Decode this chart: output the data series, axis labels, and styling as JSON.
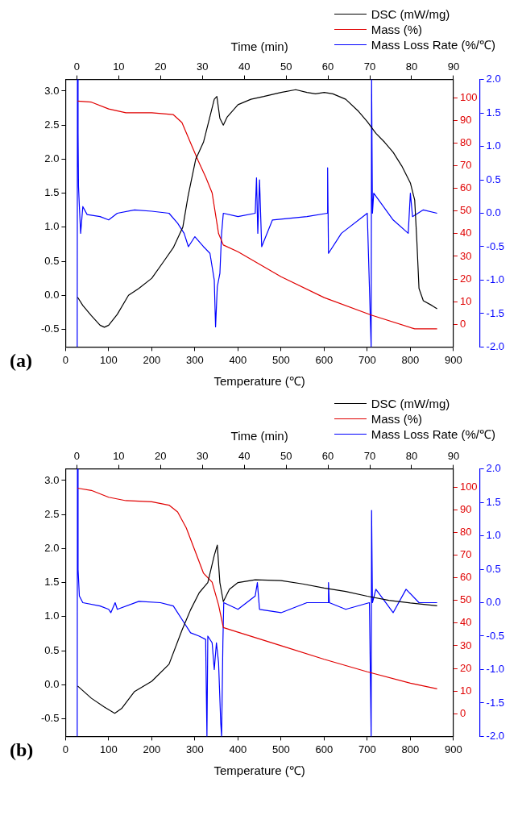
{
  "chart_data": [
    {
      "type": "line",
      "xlabel": "Temperature (℃)",
      "x2label": "Time (min)",
      "annotations": [
        "(a)"
      ],
      "legend": "top right",
      "grid": false,
      "marker": "none",
      "xlim": [
        0,
        900
      ],
      "xticks": [
        0,
        100,
        200,
        300,
        400,
        500,
        600,
        700,
        800,
        900
      ],
      "x2lim": [
        -2.7,
        90
      ],
      "x2ticks": [
        0,
        10,
        20,
        30,
        40,
        50,
        60,
        70,
        80,
        90
      ],
      "ylim": [
        -0.76,
        3.17
      ],
      "yticks": [
        {
          "value": -0.5,
          "label": "-0.5"
        },
        {
          "value": 0,
          "label": "0.0"
        },
        {
          "value": 0.5,
          "label": "0.5"
        },
        {
          "value": 1,
          "label": "1.0"
        },
        {
          "value": 1.5,
          "label": "1.5"
        },
        {
          "value": 2,
          "label": "2.0"
        },
        {
          "value": 2.5,
          "label": "2.5"
        },
        {
          "value": 3,
          "label": "3.0"
        }
      ],
      "y2lim": [
        -10,
        108
      ],
      "y2ticks": [
        0,
        10,
        20,
        30,
        40,
        50,
        60,
        70,
        80,
        90,
        100
      ],
      "y3lim": [
        -2,
        2
      ],
      "y3ticks": [
        {
          "value": -2,
          "label": "-2.0"
        },
        {
          "value": -1.5,
          "label": "-1.5"
        },
        {
          "value": -1,
          "label": "-1.0"
        },
        {
          "value": -0.5,
          "label": "-0.5"
        },
        {
          "value": 0,
          "label": "0.0"
        },
        {
          "value": 0.5,
          "label": "0.5"
        },
        {
          "value": 1,
          "label": "1.0"
        },
        {
          "value": 1.5,
          "label": "1.5"
        },
        {
          "value": 2,
          "label": "2.0"
        }
      ],
      "series": [
        {
          "name": "DSC (mW/mg)",
          "color": "#000000",
          "x": [
            28,
            40,
            60,
            80,
            90,
            100,
            120,
            146,
            170,
            200,
            228,
            250,
            272,
            284,
            302,
            320,
            332,
            345,
            351,
            358,
            366,
            375,
            400,
            430,
            460,
            500,
            534,
            560,
            580,
            600,
            620,
            650,
            680,
            700,
            720,
            740,
            760,
            780,
            800,
            810,
            815,
            820,
            830,
            850,
            862
          ],
          "values": [
            -0.03,
            -0.15,
            -0.3,
            -0.44,
            -0.47,
            -0.44,
            -0.28,
            0.0,
            0.1,
            0.25,
            0.5,
            0.7,
            1.0,
            1.45,
            2.0,
            2.25,
            2.55,
            2.88,
            2.92,
            2.6,
            2.5,
            2.62,
            2.8,
            2.88,
            2.92,
            2.98,
            3.02,
            2.98,
            2.96,
            2.98,
            2.96,
            2.88,
            2.7,
            2.55,
            2.38,
            2.25,
            2.1,
            1.9,
            1.65,
            1.4,
            0.8,
            0.1,
            -0.08,
            -0.15,
            -0.2
          ]
        },
        {
          "name": "Mass (%)",
          "color": "#e00000",
          "axis": "y2",
          "x": [
            28,
            60,
            100,
            140,
            200,
            250,
            270,
            290,
            308,
            325,
            340,
            355,
            366,
            400,
            500,
            600,
            709,
            810,
            862
          ],
          "values": [
            98.5,
            98,
            95,
            93.3,
            93.3,
            92.5,
            89,
            80,
            72,
            65,
            58,
            40,
            35,
            32,
            21,
            11.8,
            4.1,
            -2,
            -2
          ]
        },
        {
          "name": "Mass Loss Rate (%/℃)",
          "color": "#0000ff",
          "axis": "y3",
          "x": [
            27,
            27.5,
            29,
            30,
            32,
            35,
            40,
            50,
            80,
            100,
            120,
            160,
            200,
            240,
            260,
            275,
            285,
            300,
            320,
            335,
            345,
            348,
            352,
            358,
            362,
            366,
            400,
            440,
            443,
            446,
            450,
            455,
            480,
            560,
            607,
            608,
            610,
            640,
            700,
            709,
            710,
            712,
            715,
            760,
            795,
            800,
            805,
            830,
            862
          ],
          "values": [
            -2,
            2,
            1.2,
            0.4,
            0.1,
            -0.3,
            0.1,
            -0.02,
            -0.05,
            -0.1,
            0,
            0.05,
            0.03,
            0,
            -0.15,
            -0.3,
            -0.5,
            -0.35,
            -0.5,
            -0.6,
            -1,
            -1.7,
            -1.1,
            -0.9,
            -0.3,
            0,
            -0.05,
            0,
            0.53,
            -0.3,
            0.5,
            -0.5,
            -0.1,
            -0.05,
            0,
            0.68,
            -0.6,
            -0.3,
            0,
            -2,
            2,
            0,
            0.3,
            -0.1,
            -0.3,
            0.3,
            -0.05,
            0.05,
            0
          ]
        }
      ]
    },
    {
      "type": "line",
      "xlabel": "Temperature (℃)",
      "x2label": "Time (min)",
      "annotations": [
        "(b)"
      ],
      "legend": "top right",
      "grid": false,
      "marker": "none",
      "xlim": [
        0,
        900
      ],
      "xticks": [
        0,
        100,
        200,
        300,
        400,
        500,
        600,
        700,
        800,
        900
      ],
      "x2lim": [
        -2.7,
        90
      ],
      "x2ticks": [
        0,
        10,
        20,
        30,
        40,
        50,
        60,
        70,
        80,
        90
      ],
      "ylim": [
        -0.76,
        3.17
      ],
      "yticks": [
        {
          "value": -0.5,
          "label": "-0.5"
        },
        {
          "value": 0,
          "label": "0.0"
        },
        {
          "value": 0.5,
          "label": "0.5"
        },
        {
          "value": 1,
          "label": "1.0"
        },
        {
          "value": 1.5,
          "label": "1.5"
        },
        {
          "value": 2,
          "label": "2.0"
        },
        {
          "value": 2.5,
          "label": "2.5"
        },
        {
          "value": 3,
          "label": "3.0"
        }
      ],
      "y2lim": [
        -10,
        108
      ],
      "y2ticks": [
        0,
        10,
        20,
        30,
        40,
        50,
        60,
        70,
        80,
        90,
        100
      ],
      "y3lim": [
        -2,
        2
      ],
      "y3ticks": [
        {
          "value": -2,
          "label": "-2.0"
        },
        {
          "value": -1.5,
          "label": "-1.5"
        },
        {
          "value": -1,
          "label": "-1.0"
        },
        {
          "value": -0.5,
          "label": "-0.5"
        },
        {
          "value": 0,
          "label": "0.0"
        },
        {
          "value": 0.5,
          "label": "0.5"
        },
        {
          "value": 1,
          "label": "1.0"
        },
        {
          "value": 1.5,
          "label": "1.5"
        },
        {
          "value": 2,
          "label": "2.0"
        }
      ],
      "series": [
        {
          "name": "DSC (mW/mg)",
          "color": "#000000",
          "x": [
            28,
            60,
            90,
            114,
            130,
            160,
            200,
            240,
            270,
            290,
            310,
            330,
            345,
            352,
            358,
            366,
            380,
            400,
            440,
            500,
            550,
            600,
            650,
            700,
            750,
            800,
            862
          ],
          "values": [
            -0.02,
            -0.2,
            -0.33,
            -0.42,
            -0.35,
            -0.1,
            0.05,
            0.3,
            0.8,
            1.1,
            1.35,
            1.5,
            1.9,
            2.05,
            1.5,
            1.22,
            1.4,
            1.5,
            1.54,
            1.53,
            1.48,
            1.42,
            1.37,
            1.3,
            1.24,
            1.2,
            1.16
          ]
        },
        {
          "name": "Mass (%)",
          "color": "#e00000",
          "axis": "y2",
          "x": [
            28,
            60,
            100,
            140,
            200,
            240,
            260,
            280,
            300,
            320,
            340,
            355,
            366,
            400,
            500,
            600,
            700,
            800,
            862
          ],
          "values": [
            99.5,
            98.5,
            95.5,
            94,
            93.5,
            92,
            89,
            82,
            72,
            62,
            58,
            48,
            38,
            36,
            30,
            24,
            18.5,
            13.5,
            11
          ]
        },
        {
          "name": "Mass Loss Rate (%/℃)",
          "color": "#0000ff",
          "axis": "y3",
          "x": [
            27,
            27.5,
            29,
            32,
            40,
            80,
            100,
            105,
            115,
            120,
            170,
            220,
            250,
            270,
            290,
            310,
            325,
            328,
            330,
            340,
            345,
            350,
            355,
            360,
            362,
            365,
            367,
            400,
            440,
            445,
            450,
            500,
            560,
            609,
            610,
            612,
            650,
            705,
            709,
            710,
            712,
            720,
            760,
            790,
            820,
            862
          ],
          "values": [
            -2,
            2,
            0.5,
            0.1,
            0,
            -0.05,
            -0.1,
            -0.15,
            0,
            -0.1,
            0.02,
            0,
            -0.05,
            -0.25,
            -0.45,
            -0.5,
            -0.55,
            -2,
            -0.5,
            -0.6,
            -1,
            -0.6,
            -0.9,
            -1.8,
            -2,
            -0.6,
            0,
            -0.1,
            0.1,
            0.3,
            -0.1,
            -0.15,
            0,
            0,
            0.3,
            0,
            -0.1,
            0,
            -2,
            1.38,
            0,
            0.2,
            -0.15,
            0.2,
            0,
            0
          ]
        }
      ]
    }
  ]
}
